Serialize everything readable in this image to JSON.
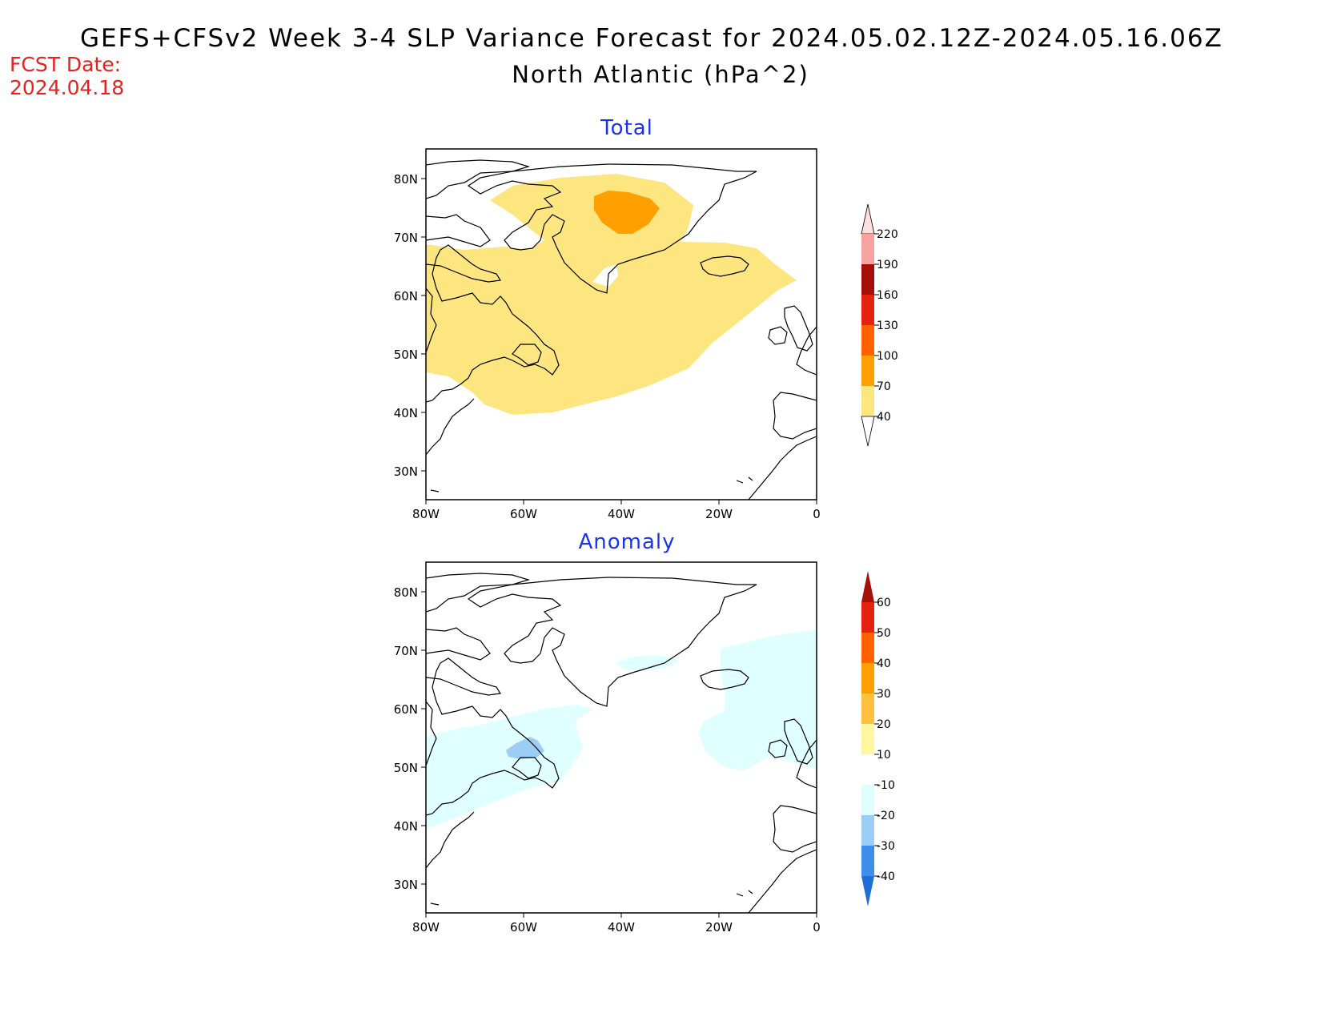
{
  "header": {
    "title": "GEFS+CFSv2 Week 3-4 SLP Variance Forecast for 2024.05.02.12Z-2024.05.16.06Z",
    "subtitle": "North Atlantic (hPa^2)",
    "fcst_label": "FCST Date:",
    "fcst_date": "2024.04.18"
  },
  "panels": [
    {
      "title": "Total",
      "lat_labels": [
        "80N",
        "70N",
        "60N",
        "50N",
        "40N",
        "30N"
      ],
      "lon_labels": [
        "80W",
        "60W",
        "40W",
        "20W",
        "0"
      ],
      "colorbar": {
        "labels": [
          "220",
          "190",
          "160",
          "130",
          "100",
          "70",
          "40"
        ],
        "colors": [
          "#fde0dd",
          "#f4a3a0",
          "#a50f0a",
          "#e5220f",
          "#ff6000",
          "#ffa000",
          "#fde680"
        ]
      },
      "fill_colors": [
        "#fde680",
        "#ffa000"
      ]
    },
    {
      "title": "Anomaly",
      "lat_labels": [
        "80N",
        "70N",
        "60N",
        "50N",
        "40N",
        "30N"
      ],
      "lon_labels": [
        "80W",
        "60W",
        "40W",
        "20W",
        "0"
      ],
      "colorbar": {
        "labels": [
          "60",
          "50",
          "40",
          "30",
          "20",
          "10",
          "-10",
          "-20",
          "-30",
          "-40"
        ],
        "colors": [
          "#a50f0a",
          "#e5220f",
          "#ff6000",
          "#ffa000",
          "#ffc040",
          "#fff8a0",
          "#ffffff",
          "#e0ffff",
          "#9ccdf5",
          "#3c8ee8",
          "#1e6ed8"
        ]
      },
      "fill_colors": [
        "#e0ffff",
        "#9ccdf5"
      ]
    }
  ]
}
